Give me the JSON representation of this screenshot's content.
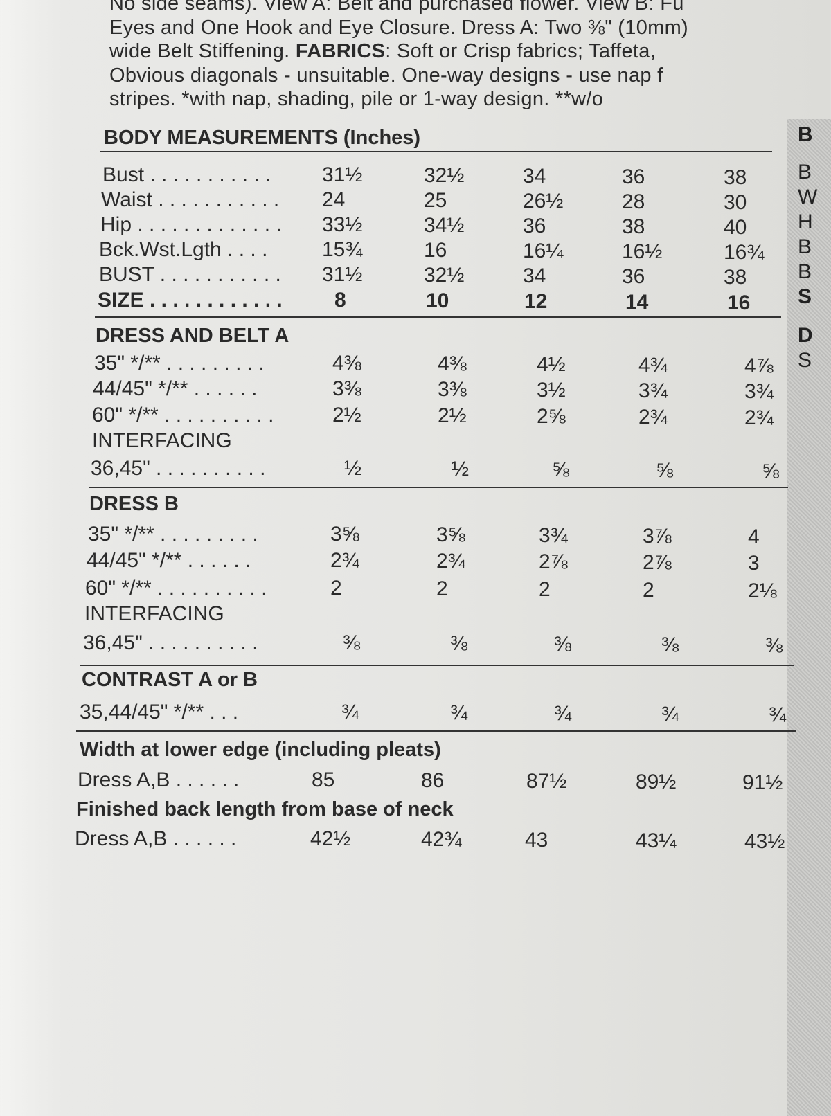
{
  "intro_lines": [
    "No side seams). View A: Belt and purchased flower. View B: Fu",
    "Eyes and One Hook and  Eye Closure. Dress A: Two ⅜\" (10mm)",
    {
      "pre": "wide Belt Stiffening.   ",
      "bold": "FABRICS",
      "post": ": Soft or Crisp fabrics; Taffeta,"
    },
    "Obvious diagonals - unsuitable. One-way designs - use nap f",
    "stripes.     *with nap, shading, pile or 1-way design.   **w/o"
  ],
  "sections": [
    {
      "title": "BODY MEASUREMENTS (Inches)",
      "rows": [
        {
          "label": "Bust . . . . . . . . . . .",
          "values": [
            "31½",
            "32½",
            "34",
            "36",
            "38"
          ]
        },
        {
          "label": "Waist . . . . . . . . . . .",
          "values": [
            "24",
            "25",
            "26½",
            "28",
            "30"
          ]
        },
        {
          "label": "Hip . . . . . . . . . . . . .",
          "values": [
            "33½",
            "34½",
            "36",
            "38",
            "40"
          ]
        },
        {
          "label": "Bck.Wst.Lgth . . . .",
          "values": [
            "15¾",
            "16",
            "16¼",
            "16½",
            "16¾"
          ]
        },
        {
          "label": "BUST . . . . . . . . . . .",
          "values": [
            "31½",
            "32½",
            "34",
            "36",
            "38"
          ]
        },
        {
          "label": "SIZE . . . . . . . . . . . .",
          "values": [
            "8",
            "10",
            "12",
            "14",
            "16"
          ],
          "bold": true
        }
      ]
    },
    {
      "title": "DRESS AND BELT A",
      "rows": [
        {
          "label": "35\" */** . . . . . . . . .",
          "values": [
            "4⅜",
            "4⅜",
            "4½",
            "4¾",
            "4⅞"
          ]
        },
        {
          "label": "44/45\" */** . . . . . .",
          "values": [
            "3⅜",
            "3⅜",
            "3½",
            "3¾",
            "3¾"
          ]
        },
        {
          "label": "60\" */** . . . . . . . . . .",
          "values": [
            "2½",
            "2½",
            "2⅝",
            "2¾",
            "2¾"
          ]
        },
        {
          "label": "INTERFACING",
          "values": []
        },
        {
          "label": "36,45\"  . . . . . . . . . .",
          "values": [
            "½",
            "½",
            "⅝",
            "⅝",
            "⅝"
          ]
        }
      ]
    },
    {
      "title": "DRESS B",
      "rows": [
        {
          "label": "35\" */** . . . . . . . . .",
          "values": [
            "3⅝",
            "3⅝",
            "3¾",
            "3⅞",
            "4"
          ]
        },
        {
          "label": "44/45\" */** . . . . . .",
          "values": [
            "2¾",
            "2¾",
            "2⅞",
            "2⅞",
            "3"
          ]
        },
        {
          "label": "60\" */** . . . . . . . . . .",
          "values": [
            "2",
            "2",
            "2",
            "2",
            "2⅛"
          ]
        },
        {
          "label": "INTERFACING",
          "values": []
        },
        {
          "label": "36,45\"  . . . . . . . . . .",
          "values": [
            "⅜",
            "⅜",
            "⅜",
            "⅜",
            "⅜"
          ]
        }
      ]
    },
    {
      "title": "CONTRAST A or B",
      "rows": [
        {
          "label": "35,44/45\" */**  . . .",
          "values": [
            "¾",
            "¾",
            "¾",
            "¾",
            "¾"
          ]
        }
      ]
    },
    {
      "title": "Width at lower edge (including pleats)",
      "rows": [
        {
          "label": "Dress A,B  . . . . . .",
          "values": [
            "85",
            "86",
            "87½",
            "89½",
            "91½"
          ]
        }
      ]
    },
    {
      "title": "Finished back length from base of neck",
      "rows": [
        {
          "label": "Dress A,B  . . . . . .",
          "values": [
            "42½",
            "42¾",
            "43",
            "43¼",
            "43½"
          ]
        }
      ]
    }
  ],
  "adjacent_column_letters": [
    "B",
    "B",
    "W",
    "H",
    "B",
    "B",
    "S",
    "D",
    "S"
  ]
}
